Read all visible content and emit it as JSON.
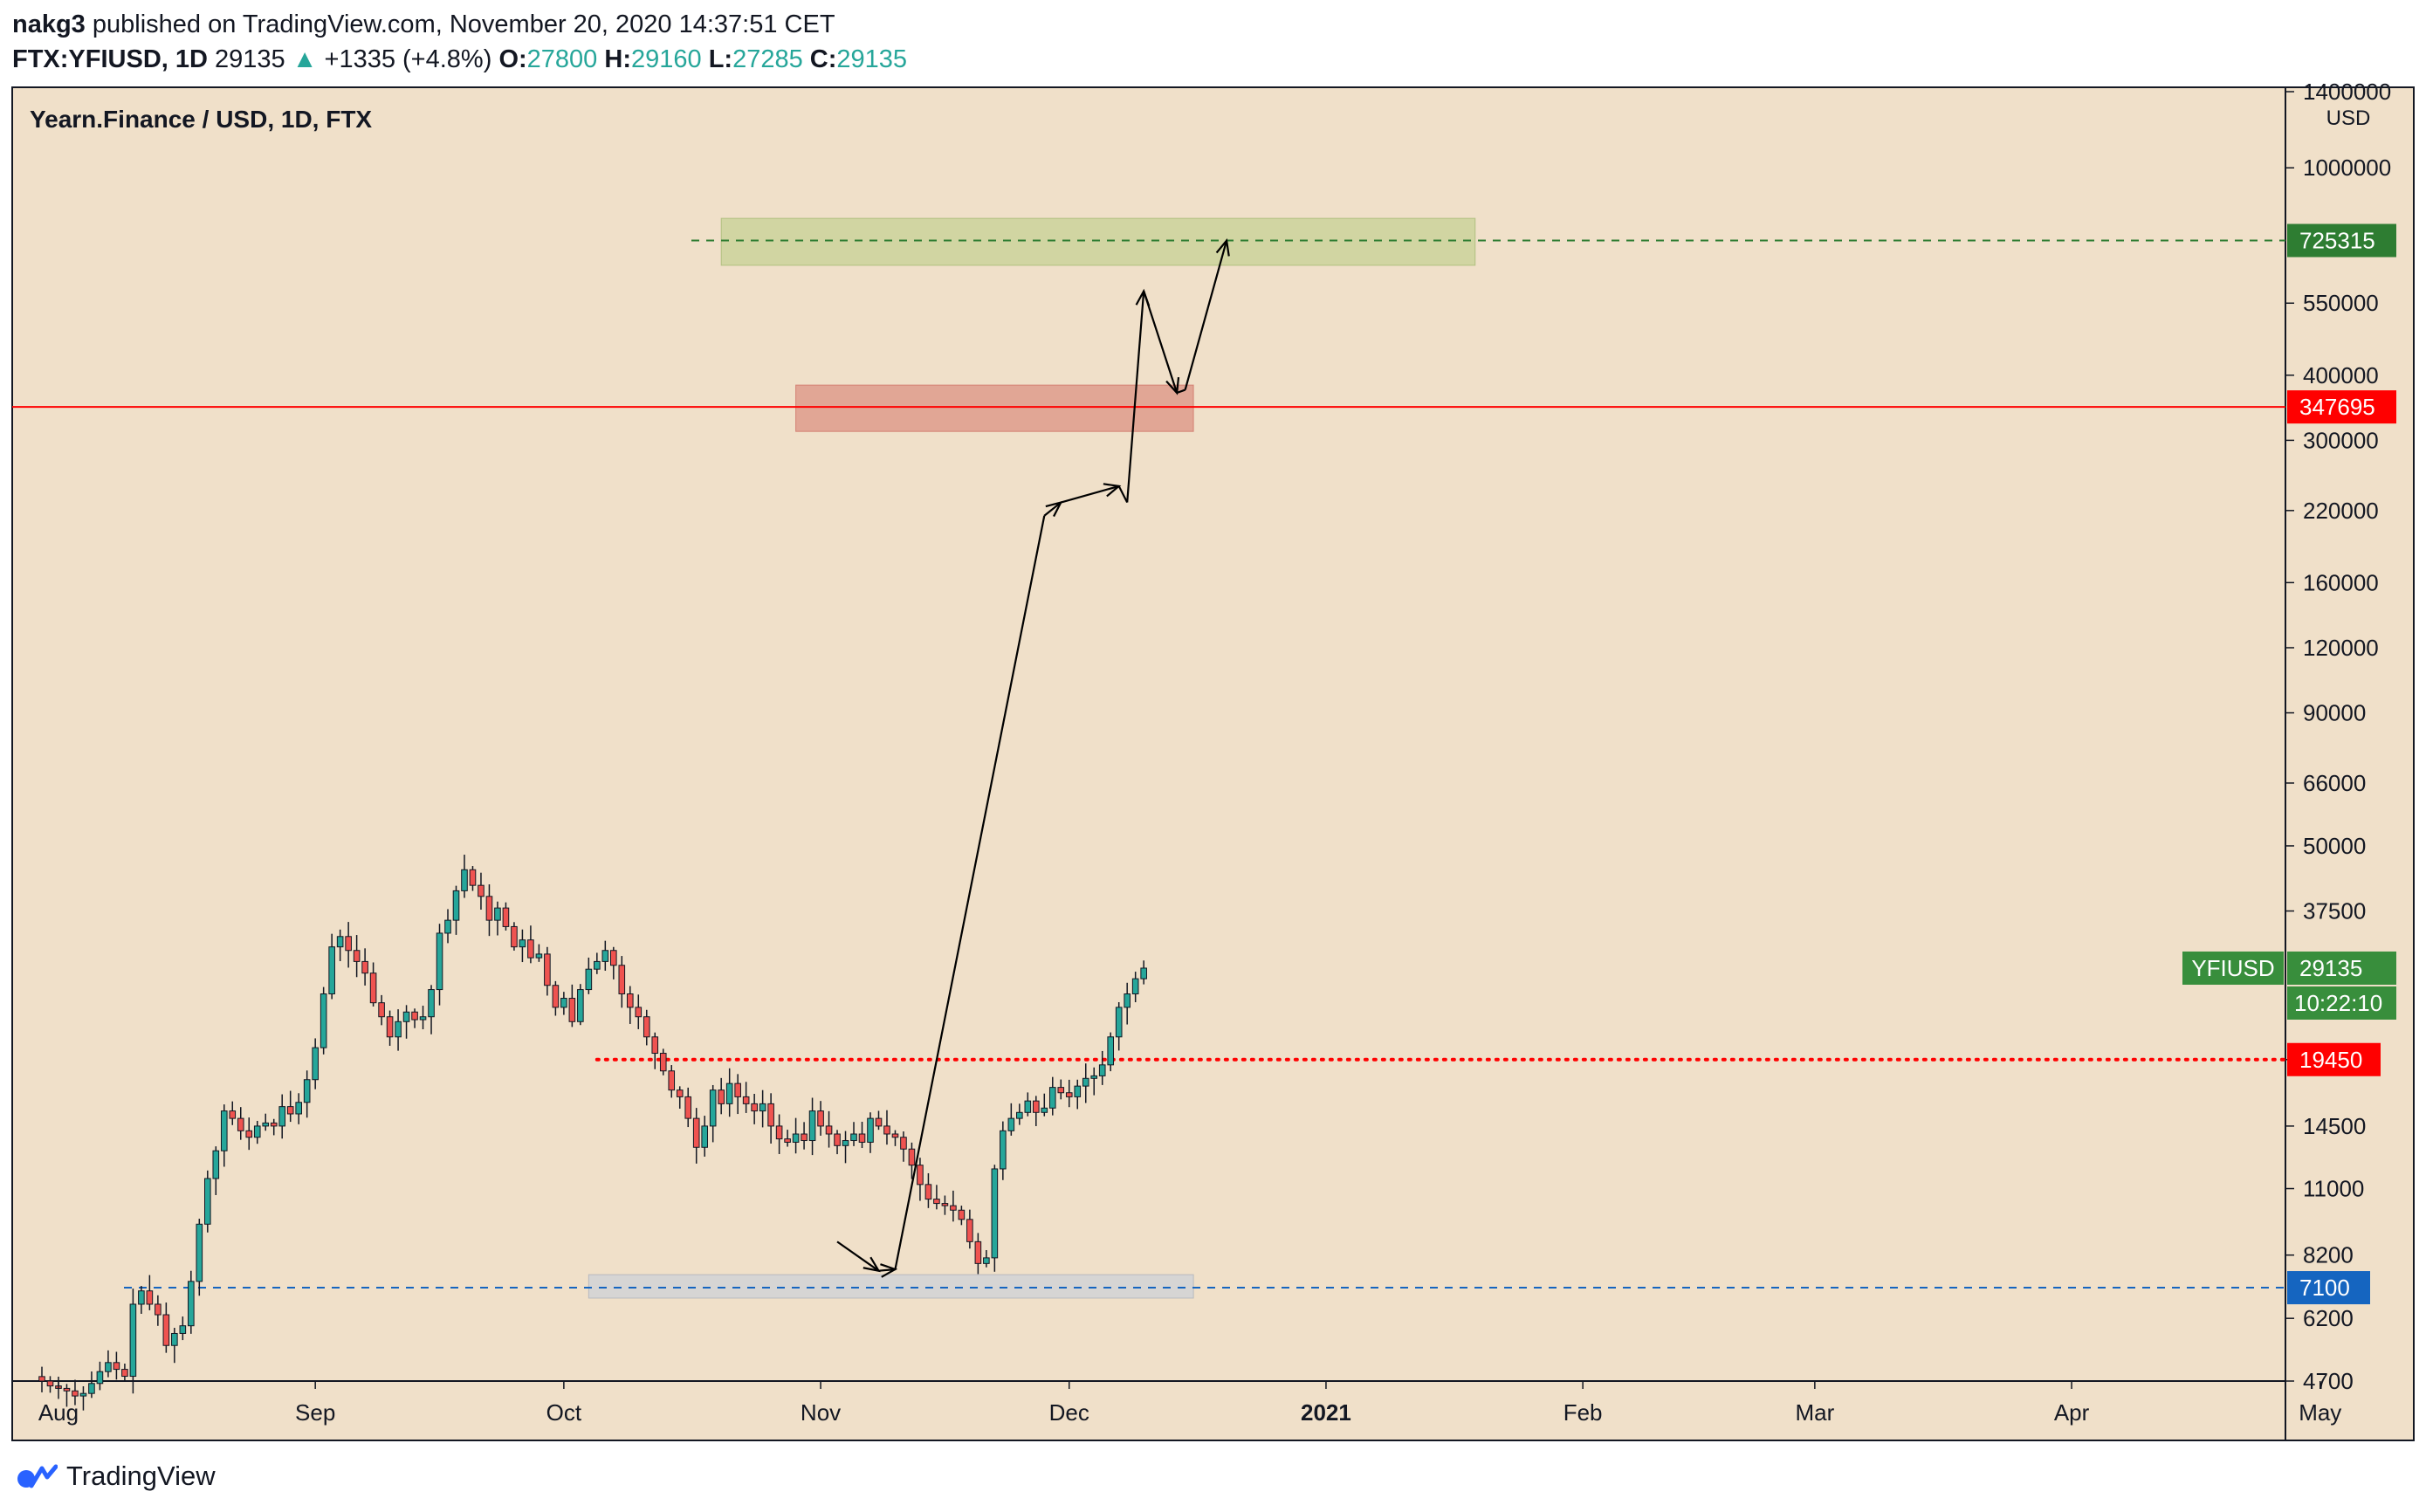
{
  "header": {
    "author": "nakg3",
    "published_text": "published on TradingView.com, November 20, 2020 14:37:51 CET",
    "symbol_line": {
      "symbol": "FTX:YFIUSD, 1D",
      "last": "29135",
      "arrow": "▲",
      "change": "+1335 (+4.8%)",
      "o_label": "O:",
      "o": "27800",
      "h_label": "H:",
      "h": "29160",
      "l_label": "L:",
      "l": "27285",
      "c_label": "C:",
      "c": "29135"
    }
  },
  "footer": {
    "brand": "TradingView"
  },
  "colors": {
    "background": "#f0e0c9",
    "up": "#26a69a",
    "down": "#ef5350",
    "resistance_line": "#ff0000",
    "target_line": "#2e7d32",
    "support_line": "#1565c0",
    "dotted_line": "#ff0000"
  },
  "chart_data": {
    "type": "candlestick",
    "title": "Yearn.Finance / USD, 1D, FTX",
    "y_scale": "log",
    "y_unit": "USD",
    "y_ticks": [
      4700,
      6200,
      8200,
      11000,
      14500,
      19450,
      37500,
      50000,
      66000,
      90000,
      120000,
      160000,
      220000,
      300000,
      400000,
      550000,
      1000000,
      1400000
    ],
    "y_tick_labels": [
      "4700",
      "6200",
      "8200",
      "11000",
      "14500",
      "",
      "37500",
      "50000",
      "66000",
      "90000",
      "120000",
      "160000",
      "220000",
      "300000",
      "400000",
      "550000",
      "1000000",
      "1400000"
    ],
    "x_labels": [
      {
        "date": "2020-08-01",
        "label": "Aug"
      },
      {
        "date": "2020-09-01",
        "label": "Sep"
      },
      {
        "date": "2020-10-01",
        "label": "Oct"
      },
      {
        "date": "2020-11-01",
        "label": "Nov"
      },
      {
        "date": "2020-12-01",
        "label": "Dec"
      },
      {
        "date": "2021-01-01",
        "label": "2021"
      },
      {
        "date": "2021-02-01",
        "label": "Feb"
      },
      {
        "date": "2021-03-01",
        "label": "Mar"
      },
      {
        "date": "2021-04-01",
        "label": "Apr"
      },
      {
        "date": "2021-05-01",
        "label": "May"
      }
    ],
    "candles": {
      "start_date": "2020-07-30",
      "close": [
        4700,
        4600,
        4550,
        4500,
        4400,
        4450,
        4650,
        4900,
        5100,
        4950,
        4800,
        6600,
        7000,
        6600,
        6300,
        5500,
        5800,
        6000,
        7300,
        9400,
        11500,
        13000,
        15500,
        15000,
        14200,
        13800,
        14500,
        14700,
        14500,
        15800,
        15300,
        16100,
        17800,
        20500,
        26000,
        32000,
        33500,
        31500,
        30000,
        28500,
        25000,
        23500,
        21500,
        23000,
        24000,
        23200,
        23500,
        26500,
        34000,
        36000,
        41000,
        45000,
        42000,
        40000,
        36000,
        38000,
        35000,
        32000,
        33000,
        30500,
        31000,
        27000,
        24500,
        25500,
        23000,
        26500,
        29000,
        30000,
        31500,
        29500,
        26000,
        24500,
        23500,
        21500,
        20000,
        18500,
        17000,
        16500,
        15000,
        13200,
        14500,
        17000,
        16000,
        17500,
        16500,
        16000,
        15500,
        16000,
        14500,
        13700,
        13500,
        14000,
        13600,
        15500,
        14500,
        14000,
        13300,
        13600,
        14000,
        13500,
        15000,
        14500,
        14000,
        13800,
        13100,
        12200,
        11200,
        10500,
        10300,
        10200,
        10000,
        9600,
        8700,
        7900,
        8100,
        12000,
        14200,
        15000,
        15400,
        16200,
        15400,
        15700,
        17200,
        16800,
        16500,
        17300,
        17900,
        18100,
        19000,
        21500,
        24500,
        26000,
        27800,
        29135
      ]
    },
    "annotations": {
      "target_price": 725315,
      "target_zone": {
        "from_date": "2020-10-20",
        "to_date": "2021-01-19",
        "low": 650000,
        "high": 800000
      },
      "resistance_price": 347695,
      "resistance_zone": {
        "from_date": "2020-10-29",
        "to_date": "2020-12-16",
        "low": 312000,
        "high": 383000
      },
      "support_price": 7100,
      "support_zone": {
        "from_date": "2020-10-04",
        "to_date": "2020-12-16",
        "low": 6780,
        "high": 7520
      },
      "dotted_level": 19450,
      "dotted_from_date": "2020-10-05",
      "projection": [
        {
          "date": "2020-11-03",
          "price": 8700
        },
        {
          "date": "2020-11-08",
          "price": 7650
        },
        {
          "date": "2020-11-10",
          "price": 7700
        },
        {
          "date": "2020-11-28",
          "price": 215000
        },
        {
          "date": "2020-11-30",
          "price": 228000
        },
        {
          "date": "2020-12-07",
          "price": 245000
        },
        {
          "date": "2020-12-08",
          "price": 228000
        },
        {
          "date": "2020-12-10",
          "price": 580000
        },
        {
          "date": "2020-12-14",
          "price": 370000
        },
        {
          "date": "2020-12-15",
          "price": 375000
        },
        {
          "date": "2020-12-20",
          "price": 725000
        }
      ]
    },
    "price_labels": [
      {
        "text": "725315",
        "kind": "target"
      },
      {
        "text": "347695",
        "kind": "resistance"
      },
      {
        "text": "19450",
        "kind": "dotted"
      },
      {
        "text": "7100",
        "kind": "support"
      }
    ],
    "last_price_tag": {
      "symbol": "YFIUSD",
      "price": "29135",
      "countdown": "10:22:10"
    }
  }
}
